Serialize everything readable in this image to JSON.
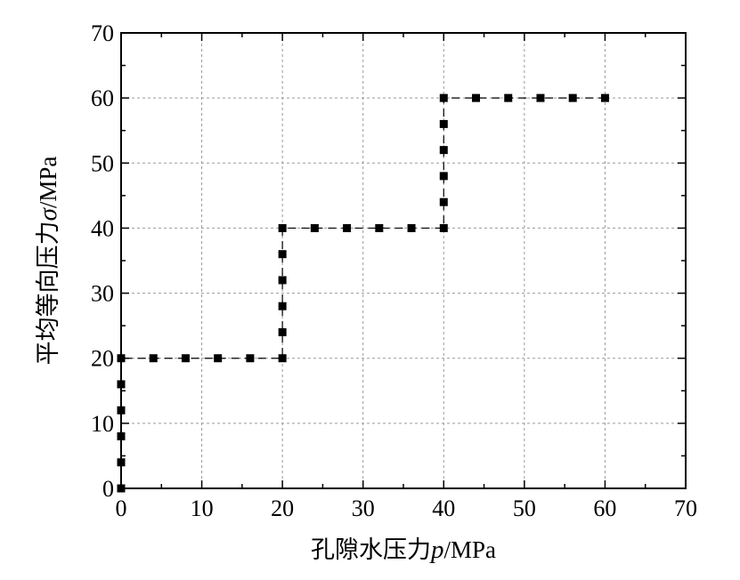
{
  "chart_data": {
    "type": "line",
    "xlabel": {
      "prefix": "孔隙水压力",
      "symbol": "p",
      "unit": "/MPa"
    },
    "ylabel": {
      "prefix": "平均等向压力",
      "symbol": "σ",
      "unit": "/MPa"
    },
    "xlim": [
      0,
      70
    ],
    "ylim": [
      0,
      70
    ],
    "xticks": [
      0,
      10,
      20,
      30,
      40,
      50,
      60,
      70
    ],
    "yticks": [
      0,
      10,
      20,
      30,
      40,
      50,
      60,
      70
    ],
    "grid": true,
    "series": [
      {
        "marker": "square",
        "line": "dashed",
        "color": "#000000",
        "points": [
          [
            0,
            0
          ],
          [
            0,
            4
          ],
          [
            0,
            8
          ],
          [
            0,
            12
          ],
          [
            0,
            16
          ],
          [
            0,
            20
          ],
          [
            4,
            20
          ],
          [
            8,
            20
          ],
          [
            12,
            20
          ],
          [
            16,
            20
          ],
          [
            20,
            20
          ],
          [
            20,
            24
          ],
          [
            20,
            28
          ],
          [
            20,
            32
          ],
          [
            20,
            36
          ],
          [
            20,
            40
          ],
          [
            24,
            40
          ],
          [
            28,
            40
          ],
          [
            32,
            40
          ],
          [
            36,
            40
          ],
          [
            40,
            40
          ],
          [
            40,
            44
          ],
          [
            40,
            48
          ],
          [
            40,
            52
          ],
          [
            40,
            56
          ],
          [
            40,
            60
          ],
          [
            44,
            60
          ],
          [
            48,
            60
          ],
          [
            52,
            60
          ],
          [
            56,
            60
          ],
          [
            60,
            60
          ]
        ]
      }
    ]
  }
}
